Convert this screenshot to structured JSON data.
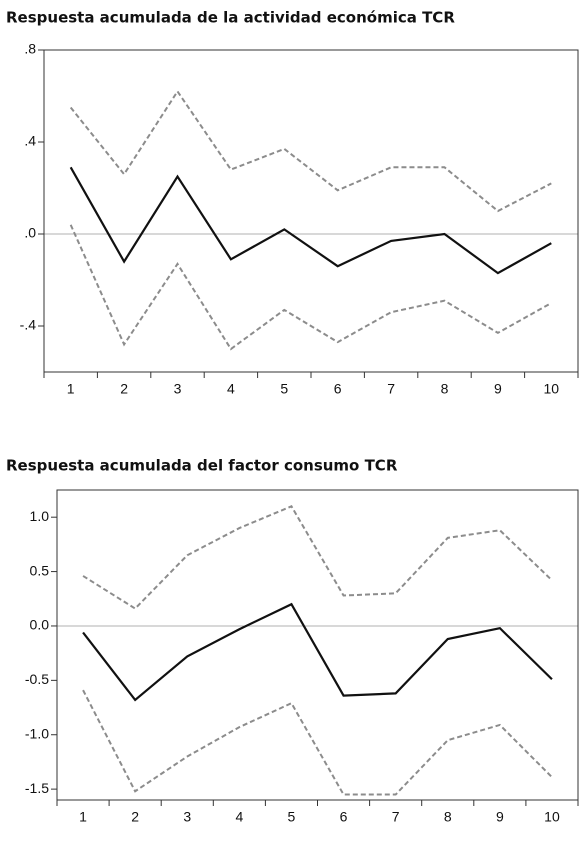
{
  "chart_data": [
    {
      "type": "line",
      "title": "Respuesta acumulada de la actividad económica TCR",
      "x": [
        1,
        2,
        3,
        4,
        5,
        6,
        7,
        8,
        9,
        10
      ],
      "xlim": [
        0.5,
        10.5
      ],
      "ylim": [
        -0.6,
        0.8
      ],
      "yticks": [
        {
          "value": -0.4,
          "label": "-.4"
        },
        {
          "value": 0,
          "label": ".0"
        },
        {
          "value": 0.4,
          "label": ".4"
        },
        {
          "value": 0.8,
          "label": ".8"
        }
      ],
      "reference_line": 0,
      "series": [
        {
          "color": "#111111",
          "dash": false,
          "values": [
            0.29,
            -0.12,
            0.25,
            -0.11,
            0.02,
            -0.14,
            -0.03,
            0.0,
            -0.17,
            -0.04
          ]
        },
        {
          "color": "#8c8c8c",
          "dash": true,
          "values": [
            0.55,
            0.26,
            0.62,
            0.28,
            0.37,
            0.19,
            0.29,
            0.29,
            0.1,
            0.22
          ]
        },
        {
          "color": "#8c8c8c",
          "dash": true,
          "values": [
            0.04,
            -0.48,
            -0.13,
            -0.5,
            -0.33,
            -0.47,
            -0.34,
            -0.29,
            -0.43,
            -0.3
          ]
        }
      ]
    },
    {
      "type": "line",
      "title": "Respuesta acumulada del factor consumo TCR",
      "x": [
        1,
        2,
        3,
        4,
        5,
        6,
        7,
        8,
        9,
        10
      ],
      "xlim": [
        0.5,
        10.5
      ],
      "ylim": [
        -1.6,
        1.25
      ],
      "yticks": [
        -1.5,
        {
          "value": -1,
          "label": "-1.0"
        },
        -0.5,
        {
          "value": 0,
          "label": "0.0"
        },
        0.5,
        {
          "value": 1,
          "label": "1.0"
        }
      ],
      "reference_line": 0,
      "series": [
        {
          "color": "#111111",
          "dash": false,
          "values": [
            -0.06,
            -0.68,
            -0.28,
            -0.03,
            0.2,
            -0.64,
            -0.62,
            -0.12,
            -0.02,
            -0.49
          ]
        },
        {
          "color": "#8c8c8c",
          "dash": true,
          "values": [
            0.46,
            0.16,
            0.65,
            0.9,
            1.1,
            0.28,
            0.3,
            0.81,
            0.88,
            0.42
          ]
        },
        {
          "color": "#8c8c8c",
          "dash": true,
          "values": [
            -0.59,
            -1.52,
            -1.2,
            -0.93,
            -0.71,
            -1.55,
            -1.55,
            -1.05,
            -0.91,
            -1.39
          ]
        }
      ]
    }
  ]
}
